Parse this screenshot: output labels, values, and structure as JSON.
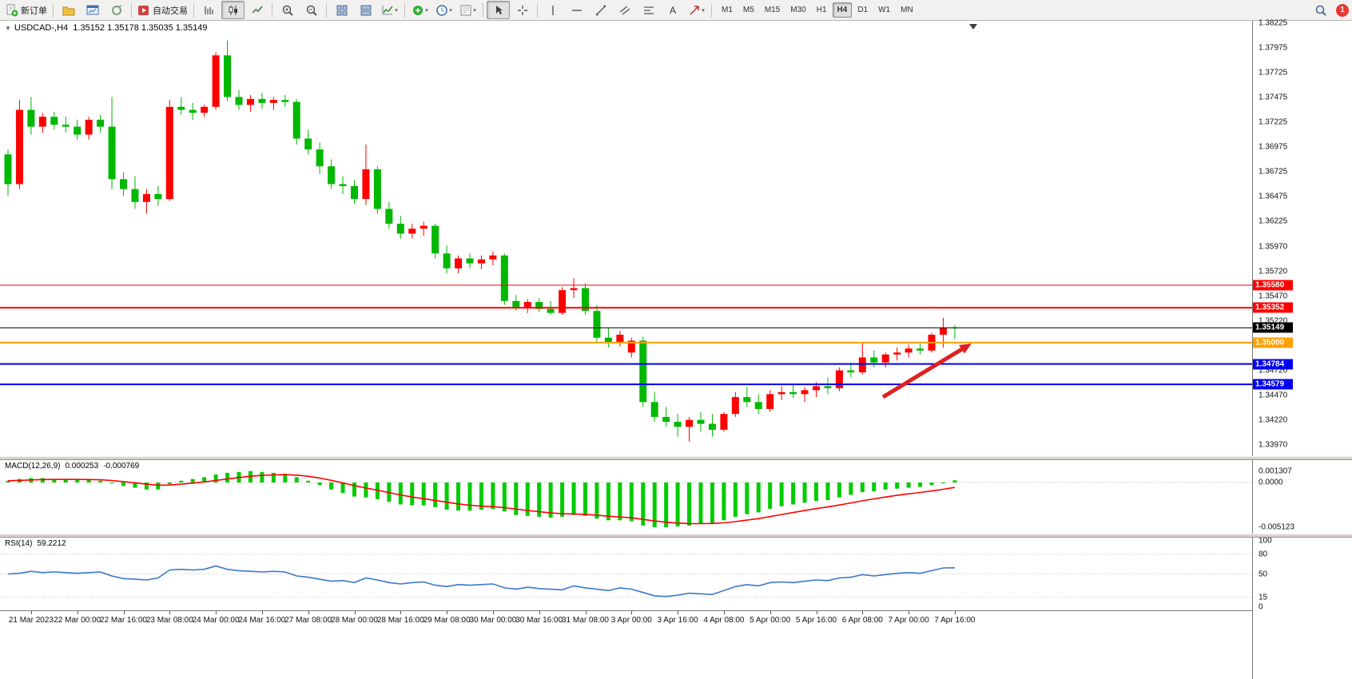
{
  "toolbar": {
    "new_order_label": "新订单",
    "auto_trading_label": "自动交易",
    "timeframes": [
      "M1",
      "M5",
      "M15",
      "M30",
      "H1",
      "H4",
      "D1",
      "W1",
      "MN"
    ],
    "active_timeframe": "H4",
    "notification_count": "1",
    "items": [
      {
        "t": "btn",
        "name": "new-order-button",
        "icon": "page-plus",
        "label": "新订单"
      },
      {
        "t": "sep"
      },
      {
        "t": "btn",
        "name": "chart-profiles-button",
        "icon": "folder"
      },
      {
        "t": "btn",
        "name": "open-chart-button",
        "icon": "chart-window"
      },
      {
        "t": "btn",
        "name": "refresh-button",
        "icon": "cycle"
      },
      {
        "t": "sep"
      },
      {
        "t": "btn",
        "name": "auto-trading-button",
        "icon": "play",
        "label": "自动交易"
      },
      {
        "t": "sep"
      },
      {
        "t": "btn",
        "name": "bar-chart-button",
        "icon": "bars"
      },
      {
        "t": "btn",
        "name": "candlestick-chart-button",
        "icon": "candles",
        "pressed": true
      },
      {
        "t": "btn",
        "name": "line-chart-button",
        "icon": "linechart"
      },
      {
        "t": "sep"
      },
      {
        "t": "btn",
        "name": "zoom-in-button",
        "icon": "zoom-in"
      },
      {
        "t": "btn",
        "name": "zoom-out-button",
        "icon": "zoom-out"
      },
      {
        "t": "sep"
      },
      {
        "t": "btn",
        "name": "tile-windows-button",
        "icon": "grid"
      },
      {
        "t": "btn",
        "name": "auto-arrange-button",
        "icon": "tile"
      },
      {
        "t": "btn",
        "name": "indicators-button",
        "icon": "indicator",
        "dd": true
      },
      {
        "t": "sep"
      },
      {
        "t": "btn",
        "name": "add-indicator-button",
        "icon": "plus-chart",
        "dd": true
      },
      {
        "t": "btn",
        "name": "period-button",
        "icon": "clock",
        "dd": true
      },
      {
        "t": "btn",
        "name": "templates-button",
        "icon": "template",
        "dd": true
      },
      {
        "t": "sep"
      },
      {
        "t": "btn",
        "name": "cursor-button",
        "icon": "cursor",
        "pressed": true
      },
      {
        "t": "btn",
        "name": "crosshair-button",
        "icon": "crosshair"
      },
      {
        "t": "sep"
      },
      {
        "t": "btn",
        "name": "vertical-line-button",
        "icon": "vline"
      },
      {
        "t": "btn",
        "name": "horizontal-line-button",
        "icon": "hline"
      },
      {
        "t": "btn",
        "name": "trendline-button",
        "icon": "trendline"
      },
      {
        "t": "btn",
        "name": "channel-button",
        "icon": "channel"
      },
      {
        "t": "btn",
        "name": "fibonacci-button",
        "icon": "fibo"
      },
      {
        "t": "btn",
        "name": "text-label-button",
        "icon": "text"
      },
      {
        "t": "btn",
        "name": "arrows-button",
        "icon": "arrows",
        "dd": true
      },
      {
        "t": "sep"
      },
      {
        "t": "tf"
      },
      {
        "t": "spacer"
      },
      {
        "t": "btn",
        "name": "search-button",
        "icon": "search"
      },
      {
        "t": "badge",
        "name": "notification-badge",
        "text": "1"
      }
    ]
  },
  "chart": {
    "title": "USDCAD-,H4",
    "ohlc": "1.35152 1.35178 1.35035 1.35149",
    "menu_arrow": "▼",
    "colors": {
      "up": "#FF0000",
      "down": "#00B800",
      "arrow": "#E02020"
    },
    "price_axis": [
      "1.38225",
      "1.37975",
      "1.37725",
      "1.37475",
      "1.37225",
      "1.36975",
      "1.36725",
      "1.36475",
      "1.36225",
      "1.35970",
      "1.35720",
      "1.35470",
      "1.35220",
      "1.34970",
      "1.34720",
      "1.34470",
      "1.34220",
      "1.33970"
    ],
    "lines": [
      {
        "value": "1.35580",
        "price": 1.3558,
        "color": "#FF0000",
        "width": 1
      },
      {
        "value": "1.35352",
        "price": 1.35352,
        "color": "#FF0000",
        "width": 2
      },
      {
        "value": "1.35149",
        "price": 1.35149,
        "color": "#000000",
        "width": 1
      },
      {
        "value": "1.35000",
        "price": 1.35,
        "color": "#FFA000",
        "width": 2
      },
      {
        "value": "1.34784",
        "price": 1.34784,
        "color": "#0000F0",
        "width": 2
      },
      {
        "value": "1.34579",
        "price": 1.34579,
        "color": "#0000F0",
        "width": 2
      }
    ],
    "time_axis": [
      "21 Mar 2023",
      "22 Mar 00:00",
      "22 Mar 16:00",
      "23 Mar 08:00",
      "24 Mar 00:00",
      "24 Mar 16:00",
      "27 Mar 08:00",
      "28 Mar 00:00",
      "28 Mar 16:00",
      "29 Mar 08:00",
      "30 Mar 00:00",
      "30 Mar 16:00",
      "31 Mar 08:00",
      "3 Apr 00:00",
      "3 Apr 16:00",
      "4 Apr 08:00",
      "5 Apr 00:00",
      "5 Apr 16:00",
      "6 Apr 08:00",
      "7 Apr 00:00",
      "7 Apr 16:00"
    ],
    "candles": [
      [
        1.369,
        1.3695,
        1.3648,
        1.366
      ],
      [
        1.366,
        1.3745,
        1.3655,
        1.3735
      ],
      [
        1.3735,
        1.3748,
        1.371,
        1.3718
      ],
      [
        1.3718,
        1.3732,
        1.3712,
        1.3728
      ],
      [
        1.3728,
        1.3733,
        1.3715,
        1.372
      ],
      [
        1.372,
        1.3728,
        1.3712,
        1.3718
      ],
      [
        1.3718,
        1.3725,
        1.3705,
        1.371
      ],
      [
        1.371,
        1.3728,
        1.3705,
        1.3725
      ],
      [
        1.3725,
        1.373,
        1.3712,
        1.3718
      ],
      [
        1.3718,
        1.3748,
        1.3655,
        1.3665
      ],
      [
        1.3665,
        1.3672,
        1.3648,
        1.3655
      ],
      [
        1.3655,
        1.3668,
        1.3635,
        1.3642
      ],
      [
        1.3642,
        1.3655,
        1.363,
        1.365
      ],
      [
        1.365,
        1.3658,
        1.3638,
        1.3645
      ],
      [
        1.3645,
        1.3745,
        1.3643,
        1.3738
      ],
      [
        1.3738,
        1.3748,
        1.373,
        1.3735
      ],
      [
        1.3735,
        1.3742,
        1.3725,
        1.3732
      ],
      [
        1.3732,
        1.374,
        1.3728,
        1.3738
      ],
      [
        1.3738,
        1.3793,
        1.3735,
        1.379
      ],
      [
        1.379,
        1.3805,
        1.3744,
        1.3748
      ],
      [
        1.3748,
        1.3755,
        1.3735,
        1.374
      ],
      [
        1.374,
        1.375,
        1.3733,
        1.3746
      ],
      [
        1.3746,
        1.3752,
        1.3736,
        1.3742
      ],
      [
        1.3742,
        1.3748,
        1.3735,
        1.3745
      ],
      [
        1.3745,
        1.375,
        1.3738,
        1.3743
      ],
      [
        1.3743,
        1.3746,
        1.37,
        1.3706
      ],
      [
        1.3706,
        1.3715,
        1.369,
        1.3695
      ],
      [
        1.3695,
        1.3702,
        1.367,
        1.3678
      ],
      [
        1.3678,
        1.3685,
        1.3655,
        1.366
      ],
      [
        1.366,
        1.3668,
        1.365,
        1.3658
      ],
      [
        1.3658,
        1.3664,
        1.364,
        1.3645
      ],
      [
        1.3645,
        1.37,
        1.3639,
        1.3675
      ],
      [
        1.3675,
        1.3678,
        1.363,
        1.3635
      ],
      [
        1.3635,
        1.3642,
        1.3615,
        1.362
      ],
      [
        1.362,
        1.3628,
        1.3605,
        1.361
      ],
      [
        1.361,
        1.362,
        1.3605,
        1.3615
      ],
      [
        1.3615,
        1.3622,
        1.3608,
        1.3618
      ],
      [
        1.3618,
        1.362,
        1.3585,
        1.359
      ],
      [
        1.359,
        1.3598,
        1.357,
        1.3575
      ],
      [
        1.3575,
        1.3588,
        1.357,
        1.3585
      ],
      [
        1.3585,
        1.359,
        1.3575,
        1.358
      ],
      [
        1.358,
        1.3588,
        1.3574,
        1.3584
      ],
      [
        1.3584,
        1.3592,
        1.3578,
        1.3588
      ],
      [
        1.3588,
        1.359,
        1.3538,
        1.3542
      ],
      [
        1.3542,
        1.3548,
        1.3532,
        1.3536
      ],
      [
        1.3536,
        1.3544,
        1.353,
        1.3541
      ],
      [
        1.3541,
        1.3545,
        1.3531,
        1.3534
      ],
      [
        1.3534,
        1.3542,
        1.3528,
        1.353
      ],
      [
        1.353,
        1.3556,
        1.3528,
        1.3553
      ],
      [
        1.3553,
        1.3565,
        1.3545,
        1.3555
      ],
      [
        1.3555,
        1.356,
        1.3528,
        1.3532
      ],
      [
        1.3532,
        1.3538,
        1.35,
        1.3505
      ],
      [
        1.3505,
        1.3515,
        1.3495,
        1.35
      ],
      [
        1.35,
        1.3512,
        1.3496,
        1.3508
      ],
      [
        1.349,
        1.3505,
        1.3485,
        1.3502
      ],
      [
        1.3502,
        1.3506,
        1.3435,
        1.344
      ],
      [
        1.344,
        1.345,
        1.342,
        1.3425
      ],
      [
        1.3425,
        1.3435,
        1.3415,
        1.342
      ],
      [
        1.342,
        1.3428,
        1.3405,
        1.3415
      ],
      [
        1.3415,
        1.3425,
        1.34,
        1.3422
      ],
      [
        1.3422,
        1.343,
        1.341,
        1.3418
      ],
      [
        1.3418,
        1.3428,
        1.3405,
        1.3412
      ],
      [
        1.3412,
        1.343,
        1.341,
        1.3428
      ],
      [
        1.3428,
        1.345,
        1.3425,
        1.3445
      ],
      [
        1.3445,
        1.3455,
        1.3435,
        1.344
      ],
      [
        1.344,
        1.3448,
        1.3428,
        1.3433
      ],
      [
        1.3433,
        1.3452,
        1.343,
        1.3448
      ],
      [
        1.3448,
        1.3456,
        1.3442,
        1.345
      ],
      [
        1.345,
        1.3458,
        1.3444,
        1.3448
      ],
      [
        1.3448,
        1.3455,
        1.344,
        1.3452
      ],
      [
        1.3452,
        1.346,
        1.3445,
        1.3456
      ],
      [
        1.3456,
        1.3465,
        1.3448,
        1.3454
      ],
      [
        1.3454,
        1.3475,
        1.3451,
        1.3472
      ],
      [
        1.3472,
        1.348,
        1.3465,
        1.347
      ],
      [
        1.347,
        1.35,
        1.3468,
        1.3485
      ],
      [
        1.3485,
        1.3492,
        1.3475,
        1.348
      ],
      [
        1.348,
        1.349,
        1.3475,
        1.3488
      ],
      [
        1.3488,
        1.3495,
        1.3482,
        1.349
      ],
      [
        1.349,
        1.3498,
        1.3485,
        1.3494
      ],
      [
        1.3494,
        1.35,
        1.3488,
        1.3492
      ],
      [
        1.3492,
        1.351,
        1.349,
        1.3508
      ],
      [
        1.3508,
        1.3525,
        1.3495,
        1.35152
      ],
      [
        1.35152,
        1.35178,
        1.35035,
        1.35149
      ]
    ]
  },
  "macd": {
    "label": "MACD(12,26,9)",
    "value_main": "0.000253",
    "value_signal": "-0.000769",
    "axis": [
      "0.001307",
      "0.0000",
      "-0.005123"
    ],
    "bar_color": "#00CC00",
    "signal_color": "#FF0000",
    "values": [
      0.0002,
      0.0004,
      0.0005,
      0.0005,
      0.0004,
      0.0004,
      0.0003,
      0.0003,
      0.0002,
      -0.0001,
      -0.0004,
      -0.0006,
      -0.0008,
      -0.0008,
      -0.0002,
      0.0002,
      0.0004,
      0.0006,
      0.0009,
      0.0011,
      0.0012,
      0.0013,
      0.0012,
      0.0011,
      0.001,
      0.0006,
      0.0002,
      -0.0003,
      -0.0008,
      -0.0012,
      -0.0016,
      -0.0017,
      -0.0019,
      -0.0022,
      -0.0025,
      -0.0026,
      -0.0026,
      -0.0028,
      -0.0031,
      -0.0032,
      -0.0032,
      -0.0031,
      -0.003,
      -0.0033,
      -0.0037,
      -0.0038,
      -0.0039,
      -0.004,
      -0.0039,
      -0.0037,
      -0.0038,
      -0.0041,
      -0.0043,
      -0.0043,
      -0.0044,
      -0.0049,
      -0.0051,
      -0.0051,
      -0.005,
      -0.0049,
      -0.0047,
      -0.0046,
      -0.0043,
      -0.0039,
      -0.0036,
      -0.0034,
      -0.003,
      -0.0027,
      -0.0025,
      -0.0023,
      -0.0021,
      -0.002,
      -0.0017,
      -0.0014,
      -0.0011,
      -0.001,
      -0.0008,
      -0.0007,
      -0.0006,
      -0.0005,
      -0.0003,
      0.0,
      0.000253
    ]
  },
  "rsi": {
    "label": "RSI(14)",
    "value": "59.2212",
    "axis": [
      "100",
      "80",
      "50",
      "15",
      "0"
    ],
    "levels": [
      80,
      50,
      15
    ],
    "line_color": "#3C78C8",
    "values": [
      50,
      51,
      54,
      52,
      53,
      52,
      51,
      52,
      53,
      47,
      43,
      42,
      41,
      44,
      56,
      57,
      56,
      57,
      62,
      57,
      55,
      54,
      53,
      54,
      53,
      47,
      45,
      42,
      39,
      40,
      37,
      44,
      41,
      37,
      35,
      37,
      38,
      33,
      31,
      34,
      33,
      34,
      35,
      29,
      27,
      30,
      28,
      27,
      26,
      32,
      29,
      27,
      25,
      29,
      27,
      22,
      17,
      16,
      18,
      21,
      20,
      19,
      25,
      31,
      34,
      32,
      37,
      38,
      37,
      39,
      41,
      40,
      44,
      45,
      49,
      47,
      49,
      51,
      52,
      51,
      55,
      59,
      59.22
    ]
  }
}
